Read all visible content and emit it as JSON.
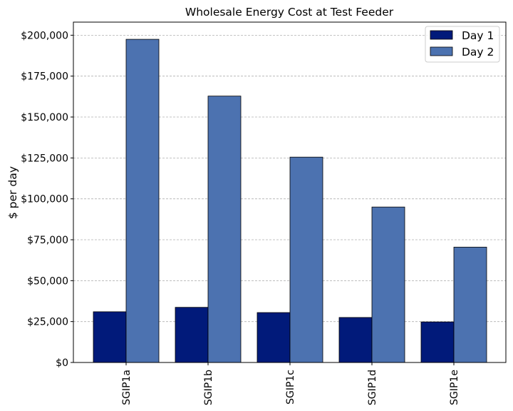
{
  "chart_data": {
    "type": "bar",
    "title": "Wholesale Energy Cost at Test Feeder",
    "xlabel": "",
    "ylabel": "$ per day",
    "categories": [
      "SGIP1a",
      "SGIP1b",
      "SGIP1c",
      "SGIP1d",
      "SGIP1e"
    ],
    "series": [
      {
        "name": "Day 1",
        "color": "#011a7a",
        "values": [
          31000,
          33700,
          30500,
          27500,
          24800
        ]
      },
      {
        "name": "Day 2",
        "color": "#4c72b0",
        "values": [
          197500,
          162800,
          125500,
          95000,
          70500
        ]
      }
    ],
    "ylim": [
      0,
      208000
    ],
    "yticks": [
      0,
      25000,
      50000,
      75000,
      100000,
      125000,
      150000,
      175000,
      200000
    ],
    "ytick_labels": [
      "$0",
      "$25,000",
      "$50,000",
      "$75,000",
      "$100,000",
      "$125,000",
      "$150,000",
      "$175,000",
      "$200,000"
    ],
    "grid": "y-dashed",
    "legend_position": "top-right"
  }
}
